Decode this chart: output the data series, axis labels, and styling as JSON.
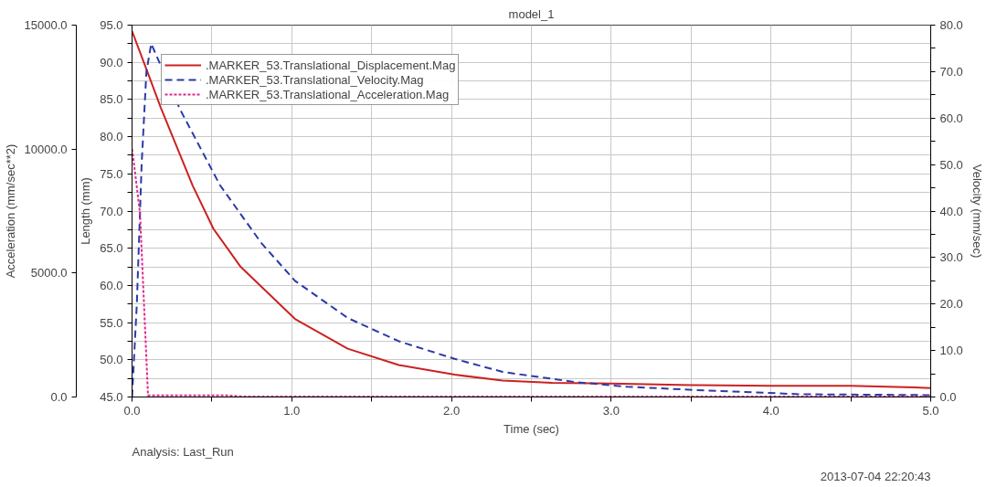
{
  "chart_data": {
    "type": "line",
    "title": "model_1",
    "xlabel": "Time (sec)",
    "ylabel": "Length (mm)",
    "y2label": "Velocity (mm/sec)",
    "y3label": "Acceleration (mm/sec**2)",
    "annotations": [
      "Analysis:  Last_Run",
      "2013-07-04 22:20:43"
    ],
    "xlim": [
      0,
      5
    ],
    "xticks": [
      {
        "value": 0,
        "label": "0.0"
      },
      {
        "value": 0.5,
        "label": null
      },
      {
        "value": 1,
        "label": "1.0"
      },
      {
        "value": 1.5,
        "label": null
      },
      {
        "value": 2,
        "label": "2.0"
      },
      {
        "value": 2.5,
        "label": null
      },
      {
        "value": 3,
        "label": "3.0"
      },
      {
        "value": 3.5,
        "label": null
      },
      {
        "value": 4,
        "label": "4.0"
      },
      {
        "value": 4.5,
        "label": null
      },
      {
        "value": 5,
        "label": "5.0"
      }
    ],
    "ylim": [
      45,
      95
    ],
    "yticks": [
      {
        "value": 45,
        "label": "45.0"
      },
      {
        "value": 47.5,
        "label": null
      },
      {
        "value": 50,
        "label": "50.0"
      },
      {
        "value": 52.5,
        "label": null
      },
      {
        "value": 55,
        "label": "55.0"
      },
      {
        "value": 57.5,
        "label": null
      },
      {
        "value": 60,
        "label": "60.0"
      },
      {
        "value": 62.5,
        "label": null
      },
      {
        "value": 65,
        "label": "65.0"
      },
      {
        "value": 67.5,
        "label": null
      },
      {
        "value": 70,
        "label": "70.0"
      },
      {
        "value": 72.5,
        "label": null
      },
      {
        "value": 75,
        "label": "75.0"
      },
      {
        "value": 77.5,
        "label": null
      },
      {
        "value": 80,
        "label": "80.0"
      },
      {
        "value": 82.5,
        "label": null
      },
      {
        "value": 85,
        "label": "85.0"
      },
      {
        "value": 87.5,
        "label": null
      },
      {
        "value": 90,
        "label": "90.0"
      },
      {
        "value": 92.5,
        "label": null
      },
      {
        "value": 95,
        "label": "95.0"
      }
    ],
    "y2lim": [
      0,
      80
    ],
    "y2ticks": [
      {
        "value": 0,
        "label": "0.0"
      },
      {
        "value": 5,
        "label": null
      },
      {
        "value": 10,
        "label": "10.0"
      },
      {
        "value": 15,
        "label": null
      },
      {
        "value": 20,
        "label": "20.0"
      },
      {
        "value": 25,
        "label": null
      },
      {
        "value": 30,
        "label": "30.0"
      },
      {
        "value": 35,
        "label": null
      },
      {
        "value": 40,
        "label": "40.0"
      },
      {
        "value": 45,
        "label": null
      },
      {
        "value": 50,
        "label": "50.0"
      },
      {
        "value": 55,
        "label": null
      },
      {
        "value": 60,
        "label": "60.0"
      },
      {
        "value": 65,
        "label": null
      },
      {
        "value": 70,
        "label": "70.0"
      },
      {
        "value": 75,
        "label": null
      },
      {
        "value": 80,
        "label": "80.0"
      }
    ],
    "y3lim": [
      0,
      15000
    ],
    "y3ticks": [
      {
        "value": 0,
        "label": "0.0"
      },
      {
        "value": 5000,
        "label": "5000.0"
      },
      {
        "value": 10000,
        "label": "10000.0"
      },
      {
        "value": 15000,
        "label": "15000.0"
      }
    ],
    "grid": true,
    "legend": "top left",
    "series": [
      {
        "name": ".MARKER_53.Translational_Displacement.Mag",
        "color": "#cc2222",
        "line_style": "solid",
        "x": [
          0,
          0.1,
          0.18,
          0.38,
          0.51,
          0.68,
          1.02,
          1.35,
          1.67,
          2.02,
          2.32,
          2.63,
          3.0,
          3.5,
          4.0,
          4.5,
          4.9,
          5.0
        ],
        "values": [
          94.2,
          88.5,
          83.9,
          73.4,
          67.6,
          62.5,
          55.5,
          51.5,
          49.3,
          48.0,
          47.2,
          46.9,
          46.8,
          46.6,
          46.5,
          46.5,
          46.3,
          46.2
        ]
      },
      {
        "name": ".MARKER_53.Translational_Velocity.Mag",
        "color": "#2b3aa8",
        "line_style": "dashed",
        "axis": "y2",
        "x": [
          0,
          0.03,
          0.06,
          0.09,
          0.12,
          0.3,
          0.55,
          0.81,
          1.02,
          1.35,
          1.67,
          2.02,
          2.32,
          2.63,
          2.78,
          3.1,
          3.53,
          4.18,
          5.0
        ],
        "values": [
          0,
          20,
          50,
          70,
          76,
          61.9,
          45.6,
          33.1,
          25.0,
          17.0,
          12.0,
          8.2,
          5.4,
          3.9,
          3.2,
          2.2,
          1.5,
          0.6,
          0.4
        ]
      },
      {
        "name": ".MARKER_53.Translational_Acceleration.Mag",
        "color": "#e0288c",
        "line_style": "dotted",
        "axis": "y3",
        "x": [
          0,
          0.02,
          0.05,
          0.08,
          0.1,
          0.6,
          0.7,
          5.0
        ],
        "values": [
          10000,
          9000,
          7400,
          3000,
          60,
          60,
          20,
          20
        ]
      }
    ]
  }
}
